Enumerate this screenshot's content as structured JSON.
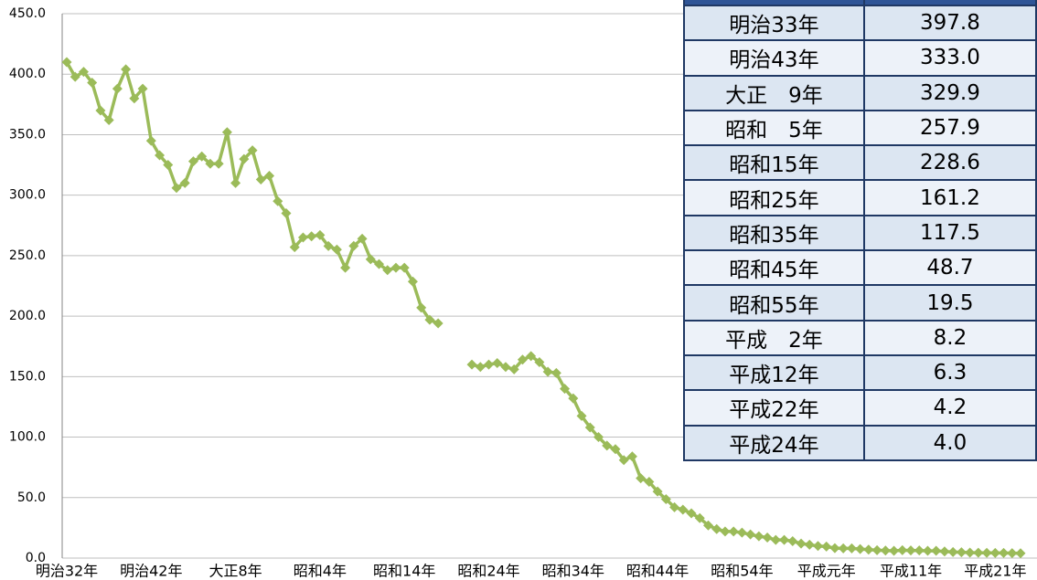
{
  "chart_data": {
    "type": "line",
    "categories": [
      "明治32年",
      null,
      null,
      null,
      null,
      null,
      null,
      null,
      null,
      null,
      "明治42年",
      null,
      null,
      null,
      null,
      null,
      null,
      null,
      null,
      null,
      "大正8年",
      null,
      null,
      null,
      null,
      null,
      null,
      null,
      null,
      null,
      "昭和4年",
      null,
      null,
      null,
      null,
      null,
      null,
      null,
      null,
      null,
      "昭和14年",
      null,
      null,
      null,
      null,
      null,
      null,
      null,
      null,
      null,
      "昭和24年",
      null,
      null,
      null,
      null,
      null,
      null,
      null,
      null,
      null,
      "昭和34年",
      null,
      null,
      null,
      null,
      null,
      null,
      null,
      null,
      null,
      "昭和44年",
      null,
      null,
      null,
      null,
      null,
      null,
      null,
      null,
      null,
      "昭和54年",
      null,
      null,
      null,
      null,
      null,
      null,
      null,
      null,
      null,
      "平成元年",
      null,
      null,
      null,
      null,
      null,
      null,
      null,
      null,
      null,
      "平成11年",
      null,
      null,
      null,
      null,
      null,
      null,
      null,
      null,
      null,
      "平成21年",
      null,
      null,
      null
    ],
    "series": [
      {
        "color": "#9bbb59",
        "values": [
          410,
          397.8,
          402,
          393,
          370,
          362,
          388,
          404,
          380,
          388,
          345,
          333.0,
          325,
          306,
          310,
          328,
          332,
          326,
          326,
          352,
          310,
          329.9,
          337,
          313,
          316,
          295,
          285,
          257,
          265,
          266,
          267,
          257.9,
          255,
          240,
          258,
          264,
          247,
          243,
          238,
          240,
          240,
          228.6,
          207,
          197,
          194,
          null,
          null,
          null,
          160,
          158,
          160,
          161.2,
          158,
          156,
          164,
          167,
          162,
          154,
          153,
          140,
          132,
          117.5,
          108,
          100,
          93,
          90,
          81,
          84,
          66,
          63,
          55,
          48.7,
          42,
          40,
          37,
          33,
          27,
          24,
          22,
          22,
          21,
          19.5,
          18,
          17,
          15,
          15,
          14,
          12,
          11,
          10,
          9.5,
          8.2,
          8,
          8,
          7.5,
          7,
          6.5,
          6.2,
          6,
          6.5,
          6.3,
          6.3,
          6,
          6,
          5.5,
          5,
          4.8,
          4.5,
          4.4,
          4.3,
          4.2,
          4.2,
          4.1,
          4.0
        ]
      }
    ],
    "ylim": [
      0,
      450
    ],
    "yticks": [
      {
        "value": 0,
        "label": "0.0"
      },
      {
        "value": 50,
        "label": "50.0"
      },
      {
        "value": 100,
        "label": "100.0"
      },
      {
        "value": 150,
        "label": "150.0"
      },
      {
        "value": 200,
        "label": "200.0"
      },
      {
        "value": 250,
        "label": "250.0"
      },
      {
        "value": 300,
        "label": "300.0"
      },
      {
        "value": 350,
        "label": "350.0"
      },
      {
        "value": 400,
        "label": "400.0"
      },
      {
        "value": 450,
        "label": "450.0"
      }
    ],
    "grid": true
  },
  "table": {
    "rows": [
      [
        "明治33年",
        "397.8"
      ],
      [
        "明治43年",
        "333.0"
      ],
      [
        "大正　9年",
        "329.9"
      ],
      [
        "昭和　5年",
        "257.9"
      ],
      [
        "昭和15年",
        "228.6"
      ],
      [
        "昭和25年",
        "161.2"
      ],
      [
        "昭和35年",
        "117.5"
      ],
      [
        "昭和45年",
        "48.7"
      ],
      [
        "昭和55年",
        "19.5"
      ],
      [
        "平成　2年",
        "8.2"
      ],
      [
        "平成12年",
        "6.3"
      ],
      [
        "平成22年",
        "4.2"
      ],
      [
        "平成24年",
        "4.0"
      ]
    ]
  }
}
